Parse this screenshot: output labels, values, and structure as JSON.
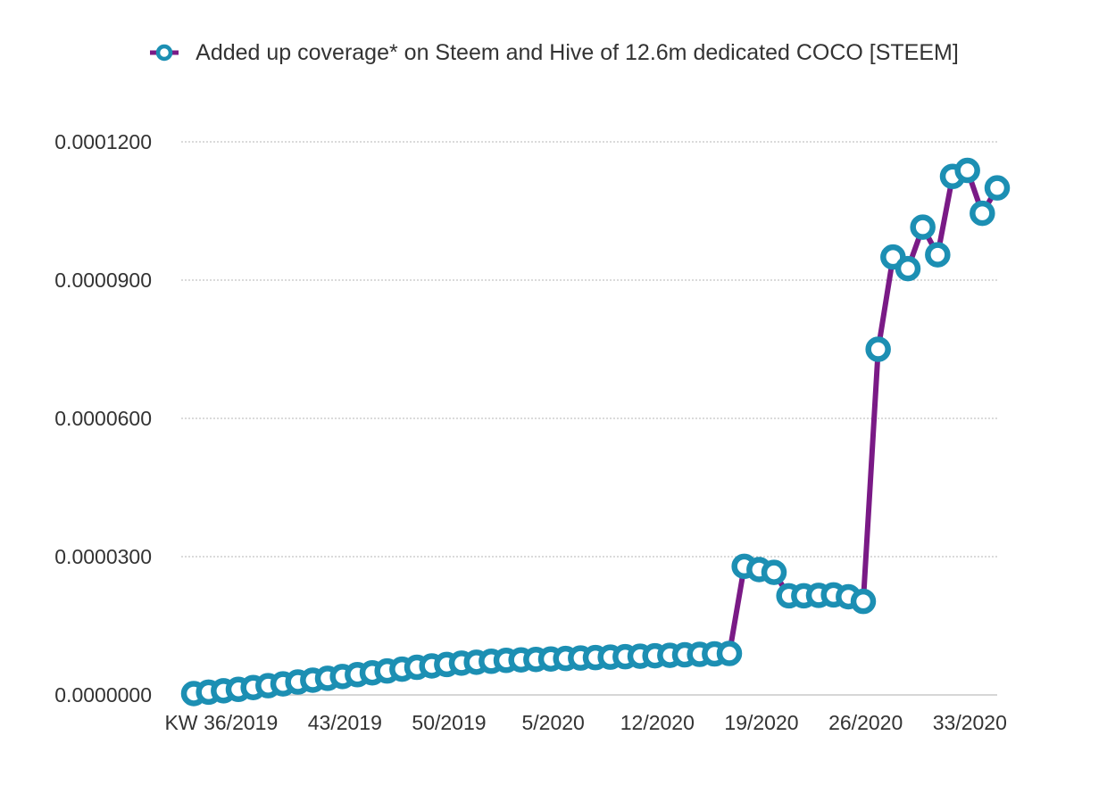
{
  "chart_data": {
    "type": "line",
    "legend": {
      "position": "top-center"
    },
    "grid": true,
    "series": [
      {
        "name": "Added up coverage* on Steem and Hive of 12.6m dedicated COCO [STEEM]",
        "line_color": "#7a1a86",
        "marker_color": "#1c8fb3",
        "values": [
          3e-07,
          6e-07,
          9e-07,
          1.2e-06,
          1.6e-06,
          2e-06,
          2.4e-06,
          2.8e-06,
          3.2e-06,
          3.6e-06,
          4e-06,
          4.4e-06,
          4.8e-06,
          5.2e-06,
          5.6e-06,
          6e-06,
          6.3e-06,
          6.6e-06,
          6.9e-06,
          7.1e-06,
          7.3e-06,
          7.5e-06,
          7.6e-06,
          7.7e-06,
          7.8e-06,
          7.9e-06,
          8e-06,
          8.1e-06,
          8.2e-06,
          8.3e-06,
          8.4e-06,
          8.5e-06,
          8.6e-06,
          8.7e-06,
          8.8e-06,
          8.9e-06,
          9e-06,
          2.79e-05,
          2.72e-05,
          2.66e-05,
          2.15e-05,
          2.15e-05,
          2.16e-05,
          2.17e-05,
          2.13e-05,
          2.03e-05,
          7.5e-05,
          9.5e-05,
          9.25e-05,
          0.0001015,
          9.55e-05,
          0.0001125,
          0.0001138,
          0.0001045,
          0.00011
        ]
      }
    ],
    "x_tick_labels": [
      {
        "index": 0,
        "label": "KW"
      },
      {
        "index": 4,
        "label": "36/2019"
      },
      {
        "index": 11,
        "label": "43/2019"
      },
      {
        "index": 18,
        "label": "50/2019"
      },
      {
        "index": 25,
        "label": "5/2020"
      },
      {
        "index": 32,
        "label": "12/2020"
      },
      {
        "index": 39,
        "label": "19/2020"
      },
      {
        "index": 46,
        "label": "26/2020"
      },
      {
        "index": 53,
        "label": "33/2020"
      }
    ],
    "y_ticks": [
      {
        "value": 0.0,
        "label": "0.0000000"
      },
      {
        "value": 3e-05,
        "label": "0.0000300"
      },
      {
        "value": 6e-05,
        "label": "0.0000600"
      },
      {
        "value": 9e-05,
        "label": "0.0000900"
      },
      {
        "value": 0.00012,
        "label": "0.0001200"
      }
    ],
    "ylim": [
      0,
      0.00012
    ]
  }
}
